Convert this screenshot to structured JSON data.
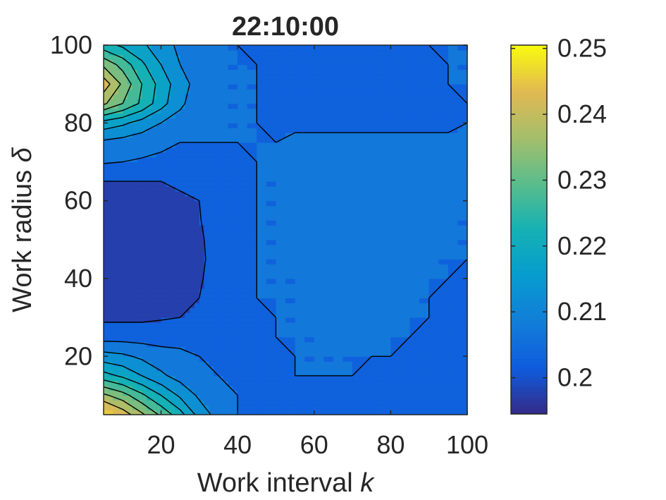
{
  "chart_data": {
    "type": "contour",
    "title": "22:10:00",
    "xlabel": {
      "text": "Work interval ",
      "var": "k"
    },
    "ylabel": {
      "text": "Work radius ",
      "var": "δ"
    },
    "xlim": [
      5,
      100
    ],
    "ylim": [
      5,
      100
    ],
    "xticks": [
      20,
      40,
      60,
      80,
      100
    ],
    "yticks": [
      20,
      40,
      60,
      80,
      100
    ],
    "colorbar": {
      "range": [
        0.1945,
        0.2505
      ],
      "ticks": [
        0.2,
        0.21,
        0.22,
        0.23,
        0.24,
        0.25
      ],
      "ticklabels": [
        "0.2",
        "0.21",
        "0.22",
        "0.23",
        "0.24",
        "0.25"
      ],
      "colormap": "parula"
    },
    "grid_x": [
      5,
      10,
      15,
      20,
      25,
      30,
      35,
      40,
      45,
      50,
      55,
      60,
      65,
      70,
      75,
      80,
      85,
      90,
      95,
      100
    ],
    "grid_y": [
      5,
      10,
      15,
      20,
      25,
      30,
      35,
      40,
      45,
      50,
      55,
      60,
      65,
      70,
      75,
      80,
      85,
      90,
      95,
      100
    ],
    "z": [
      [
        0.249,
        0.243,
        0.236,
        0.229,
        0.222,
        0.213,
        0.208,
        0.205,
        0.203,
        0.203,
        0.203,
        0.203,
        0.203,
        0.203,
        0.203,
        0.203,
        0.203,
        0.203,
        0.203,
        0.203
      ],
      [
        0.236,
        0.232,
        0.226,
        0.22,
        0.214,
        0.209,
        0.207,
        0.205,
        0.2045,
        0.204,
        0.204,
        0.204,
        0.204,
        0.204,
        0.204,
        0.203,
        0.203,
        0.203,
        0.203,
        0.203
      ],
      [
        0.222,
        0.219,
        0.215,
        0.211,
        0.208,
        0.206,
        0.205,
        0.204,
        0.204,
        0.204,
        0.205,
        0.205,
        0.205,
        0.205,
        0.204,
        0.204,
        0.204,
        0.204,
        0.203,
        0.203
      ],
      [
        0.212,
        0.211,
        0.209,
        0.207,
        0.206,
        0.205,
        0.204,
        0.204,
        0.204,
        0.2045,
        0.205,
        0.205,
        0.205,
        0.205,
        0.205,
        0.205,
        0.204,
        0.204,
        0.204,
        0.204
      ],
      [
        0.203,
        0.203,
        0.203,
        0.203,
        0.2035,
        0.204,
        0.204,
        0.204,
        0.2045,
        0.205,
        0.205,
        0.205,
        0.206,
        0.206,
        0.206,
        0.205,
        0.205,
        0.204,
        0.204,
        0.204
      ],
      [
        0.199,
        0.199,
        0.199,
        0.1995,
        0.2,
        0.201,
        0.203,
        0.204,
        0.2045,
        0.205,
        0.205,
        0.206,
        0.206,
        0.206,
        0.206,
        0.206,
        0.205,
        0.205,
        0.204,
        0.204
      ],
      [
        0.196,
        0.196,
        0.1965,
        0.197,
        0.198,
        0.2,
        0.202,
        0.203,
        0.205,
        0.205,
        0.205,
        0.206,
        0.206,
        0.206,
        0.206,
        0.206,
        0.205,
        0.205,
        0.204,
        0.204
      ],
      [
        0.195,
        0.196,
        0.196,
        0.197,
        0.198,
        0.1995,
        0.202,
        0.2035,
        0.205,
        0.205,
        0.205,
        0.206,
        0.206,
        0.206,
        0.206,
        0.206,
        0.206,
        0.205,
        0.205,
        0.204
      ],
      [
        0.195,
        0.196,
        0.196,
        0.197,
        0.198,
        0.199,
        0.202,
        0.203,
        0.205,
        0.205,
        0.206,
        0.206,
        0.206,
        0.206,
        0.206,
        0.206,
        0.206,
        0.205,
        0.205,
        0.205
      ],
      [
        0.195,
        0.196,
        0.196,
        0.197,
        0.198,
        0.1993,
        0.202,
        0.203,
        0.205,
        0.205,
        0.206,
        0.206,
        0.206,
        0.206,
        0.206,
        0.206,
        0.206,
        0.206,
        0.205,
        0.205
      ],
      [
        0.196,
        0.1965,
        0.197,
        0.1975,
        0.198,
        0.1998,
        0.202,
        0.203,
        0.205,
        0.205,
        0.206,
        0.206,
        0.206,
        0.206,
        0.206,
        0.206,
        0.206,
        0.206,
        0.205,
        0.205
      ],
      [
        0.198,
        0.198,
        0.198,
        0.1985,
        0.199,
        0.2,
        0.202,
        0.203,
        0.205,
        0.205,
        0.206,
        0.206,
        0.206,
        0.206,
        0.206,
        0.206,
        0.206,
        0.206,
        0.206,
        0.205
      ],
      [
        0.2,
        0.2,
        0.2,
        0.2,
        0.201,
        0.202,
        0.202,
        0.204,
        0.205,
        0.205,
        0.206,
        0.206,
        0.206,
        0.206,
        0.206,
        0.206,
        0.206,
        0.206,
        0.206,
        0.206
      ],
      [
        0.2055,
        0.205,
        0.2045,
        0.204,
        0.2035,
        0.203,
        0.203,
        0.204,
        0.205,
        0.206,
        0.206,
        0.206,
        0.206,
        0.206,
        0.206,
        0.206,
        0.206,
        0.206,
        0.206,
        0.206
      ],
      [
        0.209,
        0.208,
        0.207,
        0.206,
        0.205,
        0.205,
        0.205,
        0.205,
        0.205,
        0.205,
        0.206,
        0.206,
        0.206,
        0.206,
        0.206,
        0.206,
        0.206,
        0.206,
        0.206,
        0.206
      ],
      [
        0.218,
        0.216,
        0.213,
        0.21,
        0.208,
        0.206,
        0.205,
        0.205,
        0.205,
        0.204,
        0.204,
        0.204,
        0.204,
        0.204,
        0.204,
        0.204,
        0.204,
        0.204,
        0.204,
        0.205
      ],
      [
        0.236,
        0.23,
        0.224,
        0.217,
        0.211,
        0.207,
        0.205,
        0.205,
        0.205,
        0.204,
        0.203,
        0.203,
        0.203,
        0.203,
        0.203,
        0.203,
        0.203,
        0.203,
        0.204,
        0.205
      ],
      [
        0.243,
        0.234,
        0.225,
        0.218,
        0.212,
        0.208,
        0.205,
        0.205,
        0.205,
        0.204,
        0.203,
        0.203,
        0.203,
        0.203,
        0.203,
        0.203,
        0.203,
        0.2045,
        0.205,
        0.205
      ],
      [
        0.234,
        0.228,
        0.221,
        0.215,
        0.21,
        0.207,
        0.205,
        0.205,
        0.205,
        0.204,
        0.203,
        0.203,
        0.203,
        0.203,
        0.203,
        0.203,
        0.203,
        0.2045,
        0.205,
        0.205
      ],
      [
        0.222,
        0.219,
        0.216,
        0.212,
        0.209,
        0.206,
        0.205,
        0.205,
        0.2045,
        0.204,
        0.203,
        0.203,
        0.203,
        0.2035,
        0.2035,
        0.204,
        0.2045,
        0.205,
        0.205,
        0.205
      ]
    ]
  }
}
